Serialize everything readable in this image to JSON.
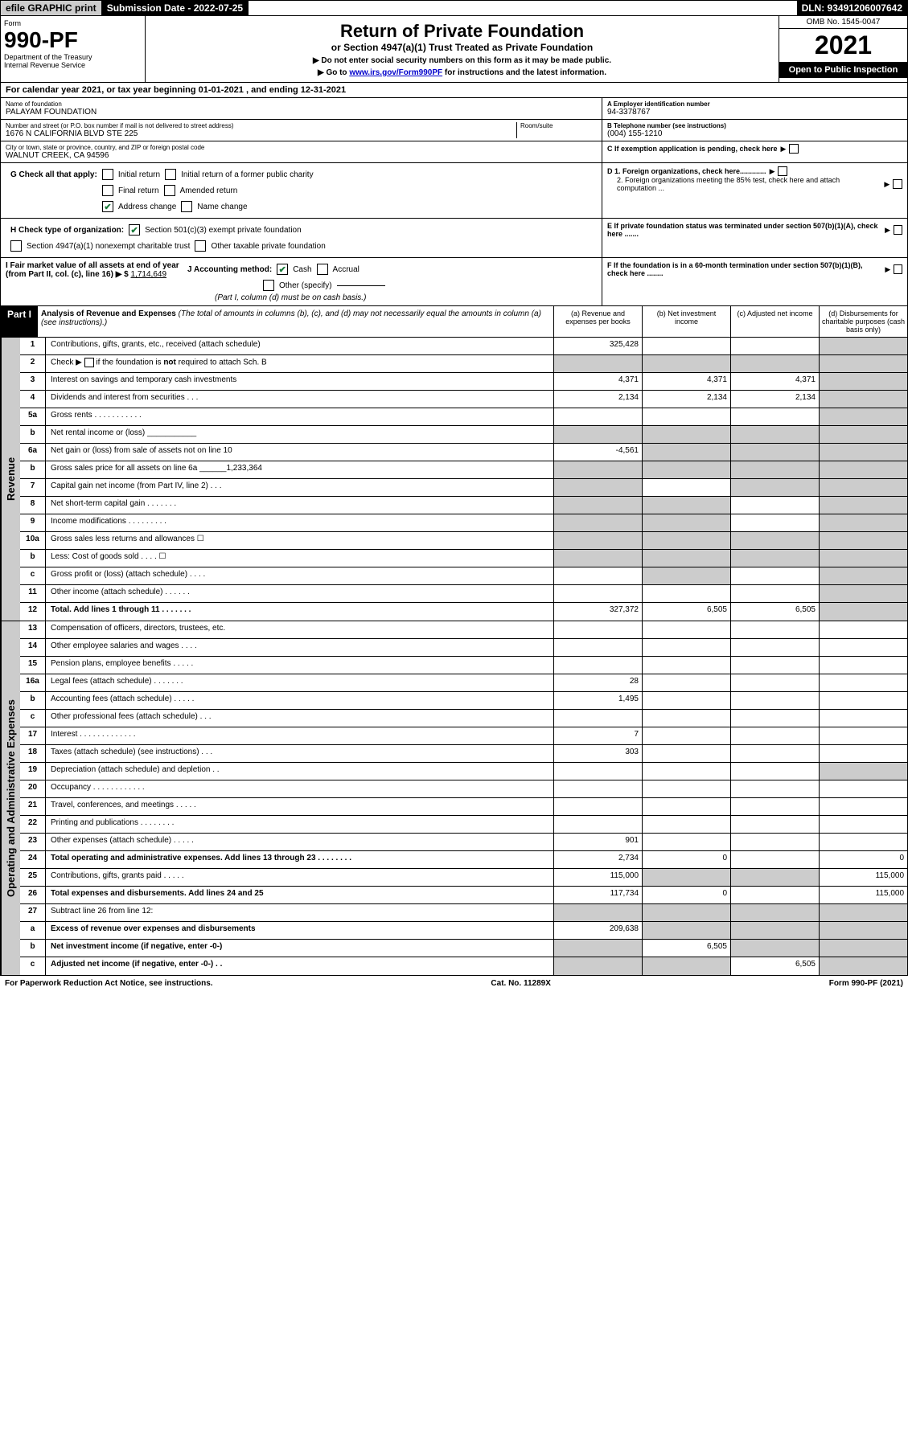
{
  "topbar": {
    "efile": "efile GRAPHIC print",
    "submission": "Submission Date - 2022-07-25",
    "dln": "DLN: 93491206007642"
  },
  "header": {
    "form_word": "Form",
    "form_num": "990-PF",
    "dept": "Department of the Treasury",
    "irs": "Internal Revenue Service",
    "title": "Return of Private Foundation",
    "subtitle": "or Section 4947(a)(1) Trust Treated as Private Foundation",
    "note1": "▶ Do not enter social security numbers on this form as it may be made public.",
    "note2_pre": "▶ Go to ",
    "note2_link": "www.irs.gov/Form990PF",
    "note2_post": " for instructions and the latest information.",
    "omb": "OMB No. 1545-0047",
    "year": "2021",
    "open": "Open to Public Inspection"
  },
  "cal_year": "For calendar year 2021, or tax year beginning 01-01-2021                        , and ending 12-31-2021",
  "info": {
    "name_label": "Name of foundation",
    "name": "PALAYAM FOUNDATION",
    "addr_label": "Number and street (or P.O. box number if mail is not delivered to street address)",
    "addr": "1676 N CALIFORNIA BLVD STE 225",
    "room_label": "Room/suite",
    "city_label": "City or town, state or province, country, and ZIP or foreign postal code",
    "city": "WALNUT CREEK, CA  94596",
    "a_label": "A Employer identification number",
    "a_val": "94-3378767",
    "b_label": "B Telephone number (see instructions)",
    "b_val": "(004) 155-1210",
    "c_label": "C If exemption application is pending, check here",
    "d1": "D 1. Foreign organizations, check here.............",
    "d2": "2. Foreign organizations meeting the 85% test, check here and attach computation ...",
    "e_label": "E  If private foundation status was terminated under section 507(b)(1)(A), check here .......",
    "f_label": "F  If the foundation is in a 60-month termination under section 507(b)(1)(B), check here ........"
  },
  "g": {
    "label": "G Check all that apply:",
    "initial": "Initial return",
    "initial_former": "Initial return of a former public charity",
    "final": "Final return",
    "amended": "Amended return",
    "address": "Address change",
    "name_change": "Name change"
  },
  "h": {
    "label": "H Check type of organization:",
    "s501": "Section 501(c)(3) exempt private foundation",
    "s4947": "Section 4947(a)(1) nonexempt charitable trust",
    "other_tax": "Other taxable private foundation"
  },
  "i": {
    "label": "I Fair market value of all assets at end of year (from Part II, col. (c), line 16) ▶ $",
    "val": "1,714,649"
  },
  "j": {
    "label": "J Accounting method:",
    "cash": "Cash",
    "accrual": "Accrual",
    "other": "Other (specify)",
    "note": "(Part I, column (d) must be on cash basis.)"
  },
  "part1": {
    "label": "Part I",
    "title": "Analysis of Revenue and Expenses",
    "desc": "(The total of amounts in columns (b), (c), and (d) may not necessarily equal the amounts in column (a) (see instructions).)",
    "col_a": "(a)   Revenue and expenses per books",
    "col_b": "(b)   Net investment income",
    "col_c": "(c)   Adjusted net income",
    "col_d": "(d)   Disbursements for charitable purposes (cash basis only)"
  },
  "revenue_label": "Revenue",
  "expenses_label": "Operating and Administrative Expenses",
  "rows": [
    {
      "ln": "1",
      "desc": "Contributions, gifts, grants, etc., received (attach schedule)",
      "a": "325,428",
      "b": "",
      "c": "",
      "d": "",
      "greyD": true
    },
    {
      "ln": "2",
      "desc": "Check ▶ ☐ if the foundation is not required to attach Sch. B",
      "a": "",
      "b": "",
      "c": "",
      "d": "",
      "greyA": true,
      "greyB": true,
      "greyC": true,
      "greyD": true,
      "html": true
    },
    {
      "ln": "3",
      "desc": "Interest on savings and temporary cash investments",
      "a": "4,371",
      "b": "4,371",
      "c": "4,371",
      "d": "",
      "greyD": true
    },
    {
      "ln": "4",
      "desc": "Dividends and interest from securities   .   .   .",
      "a": "2,134",
      "b": "2,134",
      "c": "2,134",
      "d": "",
      "greyD": true
    },
    {
      "ln": "5a",
      "desc": "Gross rents   .   .   .   .   .   .   .   .   .   .   .",
      "a": "",
      "b": "",
      "c": "",
      "d": "",
      "greyD": true
    },
    {
      "ln": "b",
      "desc": "Net rental income or (loss)  ___________",
      "a": "",
      "b": "",
      "c": "",
      "d": "",
      "greyA": true,
      "greyB": true,
      "greyC": true,
      "greyD": true
    },
    {
      "ln": "6a",
      "desc": "Net gain or (loss) from sale of assets not on line 10",
      "a": "-4,561",
      "b": "",
      "c": "",
      "d": "",
      "greyB": true,
      "greyC": true,
      "greyD": true
    },
    {
      "ln": "b",
      "desc": "Gross sales price for all assets on line 6a ______1,233,364",
      "a": "",
      "b": "",
      "c": "",
      "d": "",
      "greyA": true,
      "greyB": true,
      "greyC": true,
      "greyD": true
    },
    {
      "ln": "7",
      "desc": "Capital gain net income (from Part IV, line 2)   .   .   .",
      "a": "",
      "b": "",
      "c": "",
      "d": "",
      "greyA": true,
      "greyC": true,
      "greyD": true
    },
    {
      "ln": "8",
      "desc": "Net short-term capital gain   .   .   .   .   .   .   .",
      "a": "",
      "b": "",
      "c": "",
      "d": "",
      "greyA": true,
      "greyB": true,
      "greyD": true
    },
    {
      "ln": "9",
      "desc": "Income modifications   .   .   .   .   .   .   .   .   .",
      "a": "",
      "b": "",
      "c": "",
      "d": "",
      "greyA": true,
      "greyB": true,
      "greyD": true
    },
    {
      "ln": "10a",
      "desc": "Gross sales less returns and allowances  ☐",
      "a": "",
      "b": "",
      "c": "",
      "d": "",
      "greyA": true,
      "greyB": true,
      "greyC": true,
      "greyD": true
    },
    {
      "ln": "b",
      "desc": "Less: Cost of goods sold   .   .   .   .   ☐",
      "a": "",
      "b": "",
      "c": "",
      "d": "",
      "greyA": true,
      "greyB": true,
      "greyC": true,
      "greyD": true
    },
    {
      "ln": "c",
      "desc": "Gross profit or (loss) (attach schedule)   .   .   .   .",
      "a": "",
      "b": "",
      "c": "",
      "d": "",
      "greyB": true,
      "greyD": true
    },
    {
      "ln": "11",
      "desc": "Other income (attach schedule)   .   .   .   .   .   .",
      "a": "",
      "b": "",
      "c": "",
      "d": "",
      "greyD": true
    },
    {
      "ln": "12",
      "desc": "Total. Add lines 1 through 11   .   .   .   .   .   .   .",
      "a": "327,372",
      "b": "6,505",
      "c": "6,505",
      "d": "",
      "greyD": true,
      "bold": true
    }
  ],
  "exp_rows": [
    {
      "ln": "13",
      "desc": "Compensation of officers, directors, trustees, etc.",
      "a": "",
      "b": "",
      "c": "",
      "d": ""
    },
    {
      "ln": "14",
      "desc": "Other employee salaries and wages   .   .   .   .",
      "a": "",
      "b": "",
      "c": "",
      "d": ""
    },
    {
      "ln": "15",
      "desc": "Pension plans, employee benefits   .   .   .   .   .",
      "a": "",
      "b": "",
      "c": "",
      "d": ""
    },
    {
      "ln": "16a",
      "desc": "Legal fees (attach schedule)   .   .   .   .   .   .   .",
      "a": "28",
      "b": "",
      "c": "",
      "d": ""
    },
    {
      "ln": "b",
      "desc": "Accounting fees (attach schedule)   .   .   .   .   .",
      "a": "1,495",
      "b": "",
      "c": "",
      "d": ""
    },
    {
      "ln": "c",
      "desc": "Other professional fees (attach schedule)   .   .   .",
      "a": "",
      "b": "",
      "c": "",
      "d": ""
    },
    {
      "ln": "17",
      "desc": "Interest   .   .   .   .   .   .   .   .   .   .   .   .   .",
      "a": "7",
      "b": "",
      "c": "",
      "d": ""
    },
    {
      "ln": "18",
      "desc": "Taxes (attach schedule) (see instructions)   .   .   .",
      "a": "303",
      "b": "",
      "c": "",
      "d": ""
    },
    {
      "ln": "19",
      "desc": "Depreciation (attach schedule) and depletion   .   .",
      "a": "",
      "b": "",
      "c": "",
      "d": "",
      "greyD": true
    },
    {
      "ln": "20",
      "desc": "Occupancy   .   .   .   .   .   .   .   .   .   .   .   .",
      "a": "",
      "b": "",
      "c": "",
      "d": ""
    },
    {
      "ln": "21",
      "desc": "Travel, conferences, and meetings   .   .   .   .   .",
      "a": "",
      "b": "",
      "c": "",
      "d": ""
    },
    {
      "ln": "22",
      "desc": "Printing and publications   .   .   .   .   .   .   .   .",
      "a": "",
      "b": "",
      "c": "",
      "d": ""
    },
    {
      "ln": "23",
      "desc": "Other expenses (attach schedule)   .   .   .   .   .",
      "a": "901",
      "b": "",
      "c": "",
      "d": ""
    },
    {
      "ln": "24",
      "desc": "Total operating and administrative expenses. Add lines 13 through 23   .   .   .   .   .   .   .   .",
      "a": "2,734",
      "b": "0",
      "c": "",
      "d": "0",
      "bold": true
    },
    {
      "ln": "25",
      "desc": "Contributions, gifts, grants paid   .   .   .   .   .",
      "a": "115,000",
      "b": "",
      "c": "",
      "d": "115,000",
      "greyB": true,
      "greyC": true
    },
    {
      "ln": "26",
      "desc": "Total expenses and disbursements. Add lines 24 and 25",
      "a": "117,734",
      "b": "0",
      "c": "",
      "d": "115,000",
      "bold": true
    },
    {
      "ln": "27",
      "desc": "Subtract line 26 from line 12:",
      "a": "",
      "b": "",
      "c": "",
      "d": "",
      "greyA": true,
      "greyB": true,
      "greyC": true,
      "greyD": true
    },
    {
      "ln": "a",
      "desc": "Excess of revenue over expenses and disbursements",
      "a": "209,638",
      "b": "",
      "c": "",
      "d": "",
      "greyB": true,
      "greyC": true,
      "greyD": true,
      "bold": true
    },
    {
      "ln": "b",
      "desc": "Net investment income (if negative, enter -0-)",
      "a": "",
      "b": "6,505",
      "c": "",
      "d": "",
      "greyA": true,
      "greyC": true,
      "greyD": true,
      "bold": true
    },
    {
      "ln": "c",
      "desc": "Adjusted net income (if negative, enter -0-)   .   .",
      "a": "",
      "b": "",
      "c": "6,505",
      "d": "",
      "greyA": true,
      "greyB": true,
      "greyD": true,
      "bold": true
    }
  ],
  "footer": {
    "left": "For Paperwork Reduction Act Notice, see instructions.",
    "center": "Cat. No. 11289X",
    "right": "Form 990-PF (2021)"
  }
}
